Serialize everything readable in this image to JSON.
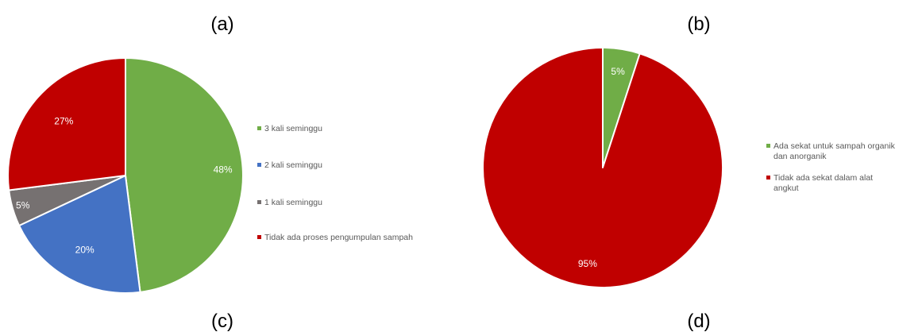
{
  "panel_labels": [
    "(a)",
    "(b)",
    "(c)",
    "(d)"
  ],
  "colors": {
    "green": "#70ad47",
    "blue": "#4472c4",
    "gray": "#767171",
    "red": "#c00000"
  },
  "chart_data": [
    {
      "type": "pie",
      "labels": [
        "3 kali seminggu",
        "2 kali seminggu",
        "1 kali seminggu",
        "Tidak ada proses pengumpulan sampah"
      ],
      "values": [
        48,
        20,
        5,
        27
      ],
      "data_labels": [
        "48%",
        "20%",
        "5%",
        "27%"
      ],
      "colors": [
        "#70ad47",
        "#4472c4",
        "#767171",
        "#c00000"
      ],
      "legend": "right"
    },
    {
      "type": "pie",
      "labels": [
        "Ada sekat untuk sampah organik dan anorganik",
        "Tidak ada sekat dalam alat angkut"
      ],
      "legend_lines": [
        [
          "Ada sekat untuk sampah organik",
          "dan anorganik"
        ],
        [
          "Tidak ada sekat dalam alat",
          "angkut"
        ]
      ],
      "values": [
        5,
        95
      ],
      "data_labels": [
        "5%",
        "95%"
      ],
      "colors": [
        "#70ad47",
        "#c00000"
      ],
      "legend": "right"
    }
  ]
}
